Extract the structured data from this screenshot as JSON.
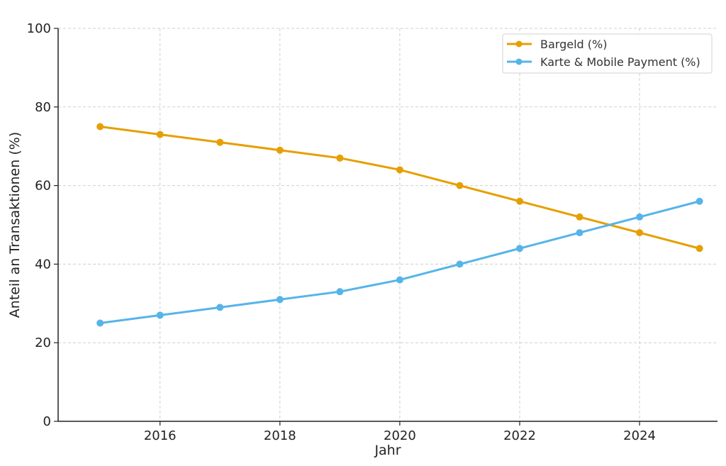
{
  "chart_data": {
    "type": "line",
    "title": "",
    "xlabel": "Jahr",
    "ylabel": "Anteil an Transaktionen (%)",
    "x": [
      2015,
      2016,
      2017,
      2018,
      2019,
      2020,
      2021,
      2022,
      2023,
      2024,
      2025
    ],
    "xlim": [
      2014.3,
      2025.3
    ],
    "ylim": [
      0,
      100
    ],
    "x_ticks": [
      "2016",
      "2018",
      "2020",
      "2022",
      "2024"
    ],
    "y_ticks": [
      "0",
      "20",
      "40",
      "60",
      "80",
      "100"
    ],
    "grid": true,
    "legend_position": "top-right",
    "series": [
      {
        "name": "Bargeld (%)",
        "color": "#E69F00",
        "values": [
          75,
          73,
          71,
          69,
          67,
          64,
          60,
          56,
          52,
          48,
          44
        ]
      },
      {
        "name": "Karte & Mobile Payment (%)",
        "color": "#56B4E9",
        "values": [
          25,
          27,
          29,
          31,
          33,
          36,
          40,
          44,
          48,
          52,
          56
        ]
      }
    ]
  }
}
